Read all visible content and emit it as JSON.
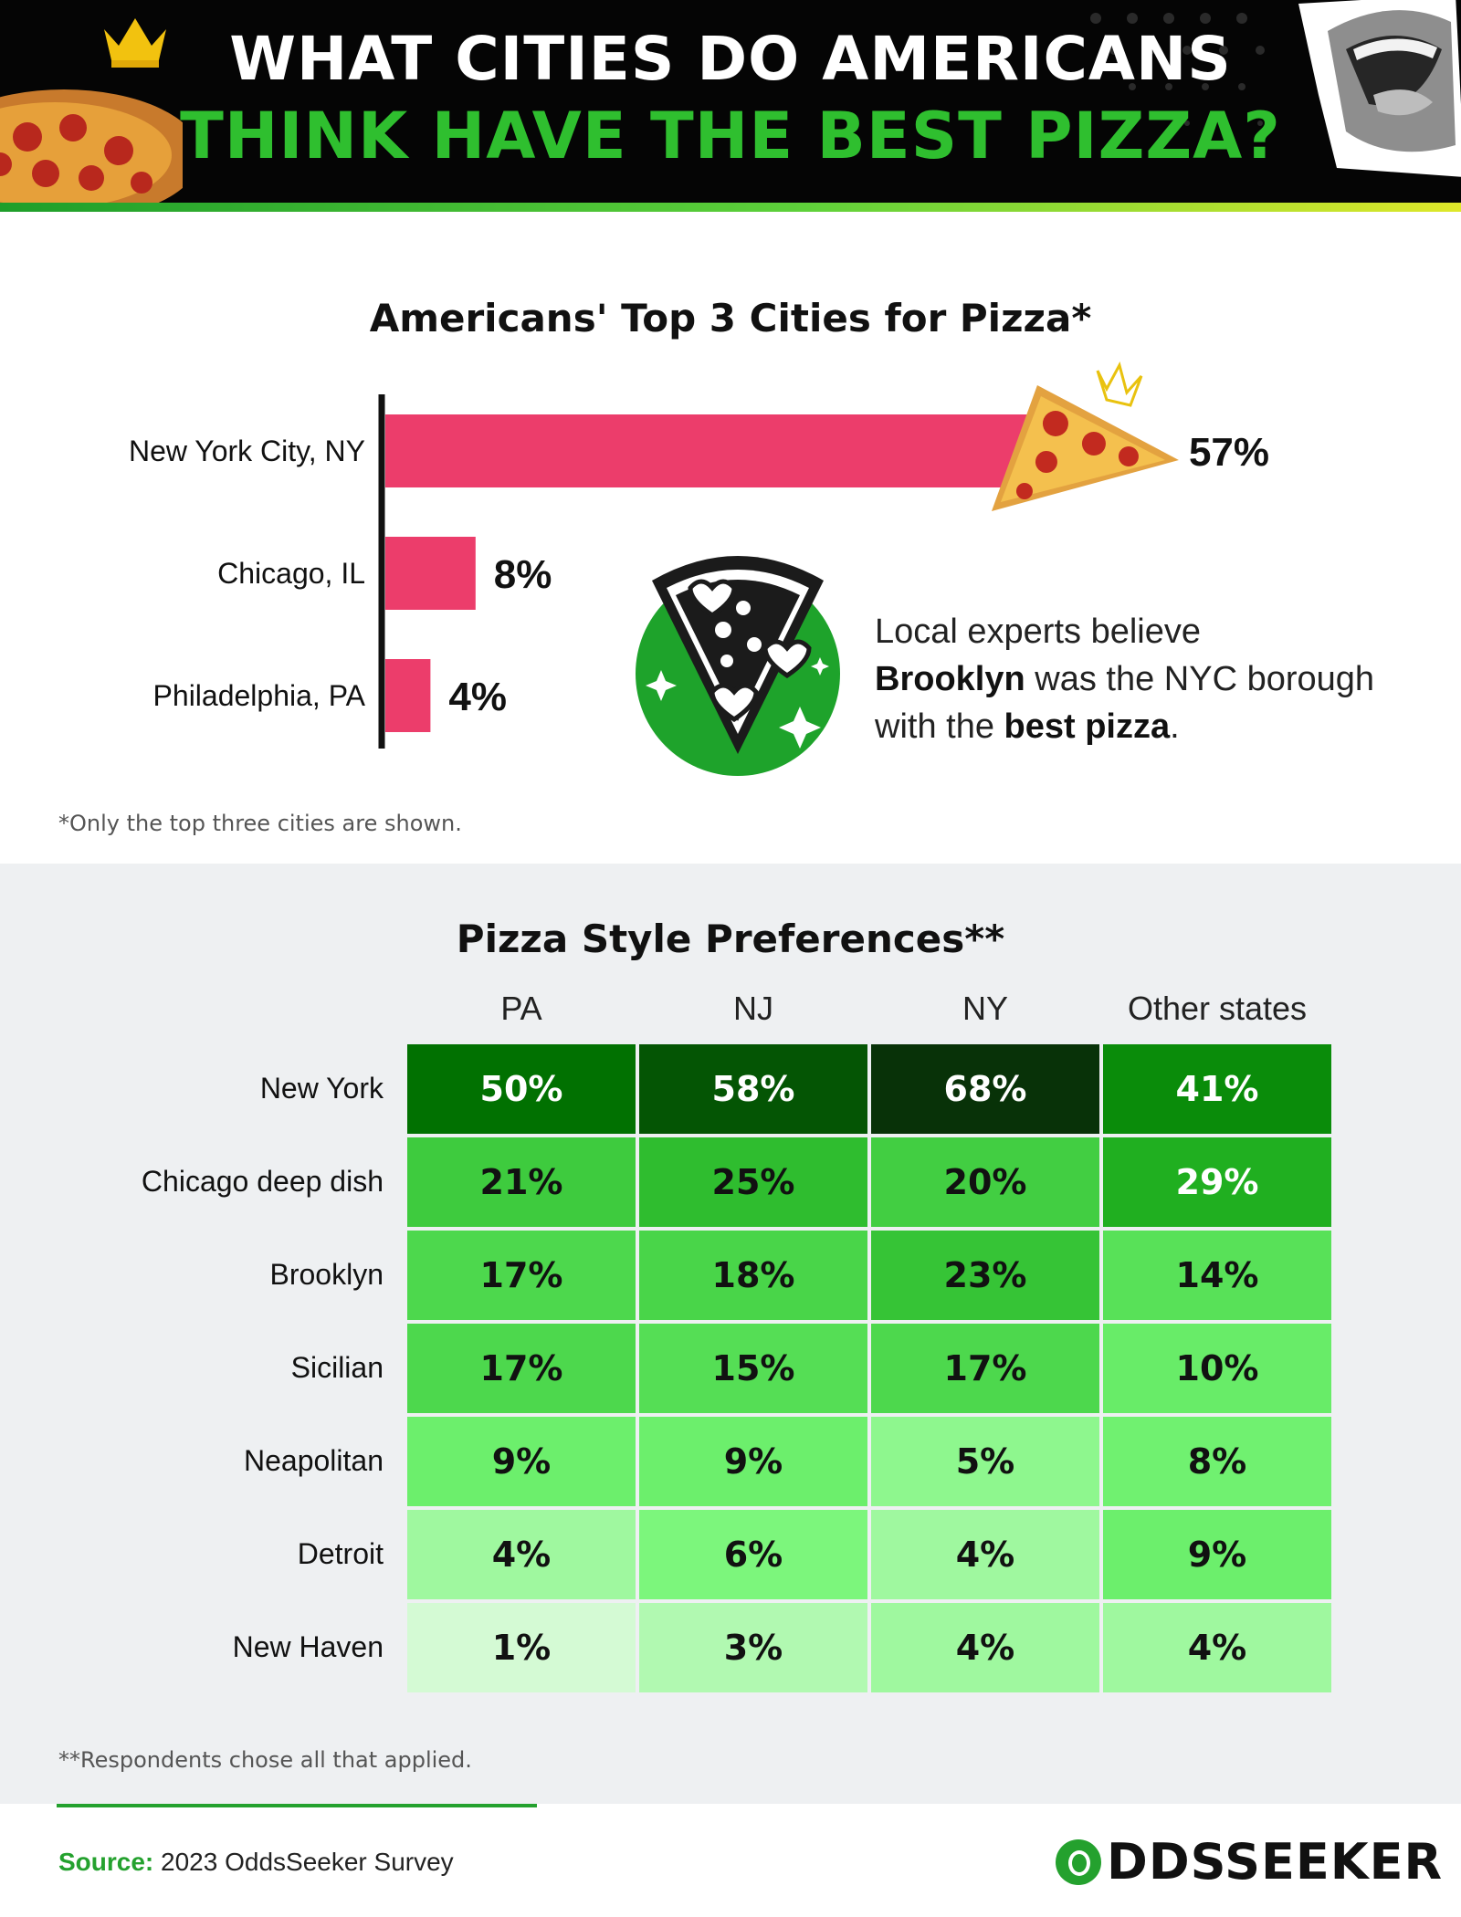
{
  "header": {
    "title_line1": "WHAT CITIES DO AMERICANS",
    "title_line2": "THINK HAVE THE BEST PIZZA?",
    "pizza_icon": "pizza-image",
    "crown_icon": "crown-icon",
    "mouth_icon": "open-mouth-image"
  },
  "colors": {
    "header_bg": "#050505",
    "title_accent": "#2fbf2f",
    "bar": "#ec3d6b",
    "highlight_value": "#ec3d6b",
    "brand_green": "#24a12e"
  },
  "chart_data": [
    {
      "type": "bar",
      "orientation": "horizontal",
      "title": "Americans' Top 3 Cities for Pizza*",
      "categories": [
        "New York City, NY",
        "Chicago, IL",
        "Philadelphia, PA"
      ],
      "values": [
        57,
        8,
        4
      ],
      "value_labels": [
        "57%",
        "8%",
        "4%"
      ],
      "xlabel": "",
      "ylabel": "",
      "note": "*Only the top three cities are shown."
    },
    {
      "type": "heatmap",
      "title": "Pizza Style Preferences**",
      "columns": [
        "PA",
        "NJ",
        "NY",
        "Other states"
      ],
      "rows": [
        "New York",
        "Chicago deep dish",
        "Brooklyn",
        "Sicilian",
        "Neapolitan",
        "Detroit",
        "New Haven"
      ],
      "values": [
        [
          50,
          58,
          68,
          41
        ],
        [
          21,
          25,
          20,
          29
        ],
        [
          17,
          18,
          23,
          14
        ],
        [
          17,
          15,
          17,
          10
        ],
        [
          9,
          9,
          5,
          8
        ],
        [
          4,
          6,
          4,
          9
        ],
        [
          1,
          3,
          4,
          4
        ]
      ],
      "note": "**Respondents chose all that applied."
    }
  ],
  "callout": {
    "icon": "pizza-slice-hearts-icon",
    "text_before": "Local experts believe",
    "bold1": "Brooklyn",
    "text_mid": " was the NYC borough with the ",
    "bold2": "best pizza",
    "text_end": "."
  },
  "footer": {
    "source_label": "Source:",
    "source_text": " 2023 OddsSeeker Survey",
    "logo_text": "DDSSEEKER",
    "logo_icon": "oddsseeker-logo-icon"
  }
}
